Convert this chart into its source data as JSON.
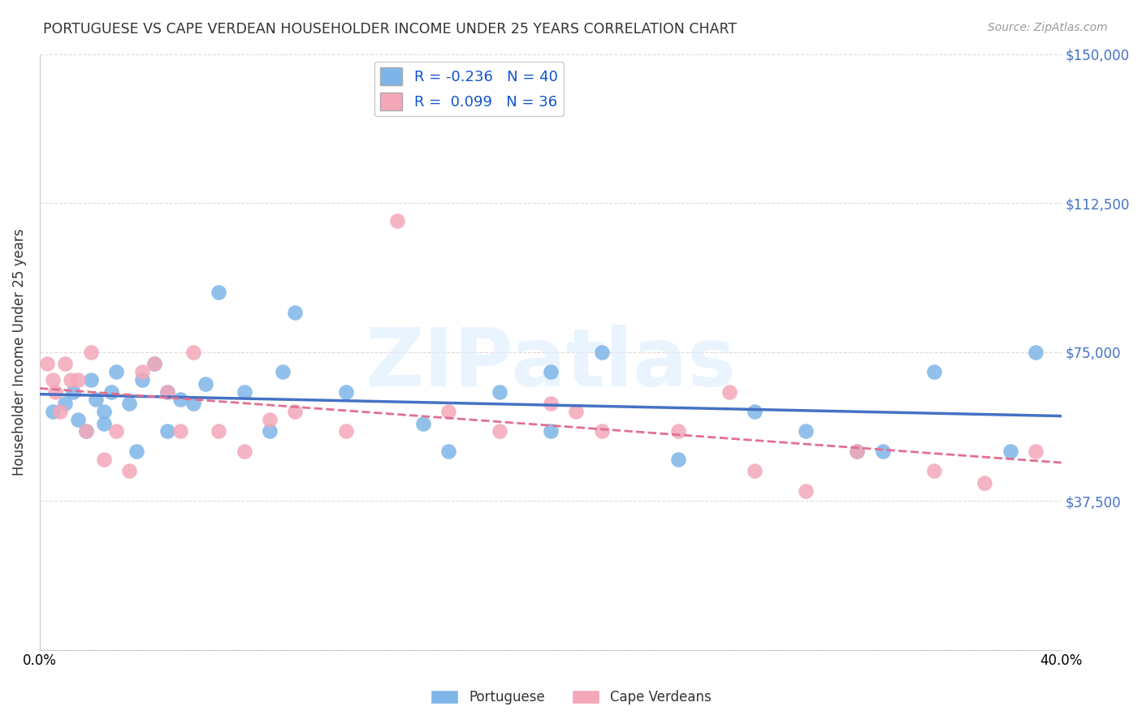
{
  "title": "PORTUGUESE VS CAPE VERDEAN HOUSEHOLDER INCOME UNDER 25 YEARS CORRELATION CHART",
  "source": "Source: ZipAtlas.com",
  "ylabel": "Householder Income Under 25 years",
  "xlim": [
    0,
    0.4
  ],
  "ylim": [
    0,
    150000
  ],
  "yticks": [
    0,
    37500,
    75000,
    112500,
    150000
  ],
  "ytick_labels": [
    "",
    "$37,500",
    "$75,000",
    "$112,500",
    "$150,000"
  ],
  "xticks": [
    0.0,
    0.05,
    0.1,
    0.15,
    0.2,
    0.25,
    0.3,
    0.35,
    0.4
  ],
  "portuguese_R": -0.236,
  "portuguese_N": 40,
  "capeverdean_R": 0.099,
  "capeverdean_N": 36,
  "portuguese_color": "#7EB5E8",
  "capeverdean_color": "#F4A7B9",
  "portuguese_line_color": "#4472C4",
  "capeverdean_line_color": "#E07090",
  "background_color": "#FFFFFF",
  "watermark_text": "ZIPatlas",
  "portuguese_x": [
    0.005,
    0.01,
    0.013,
    0.015,
    0.018,
    0.02,
    0.022,
    0.025,
    0.025,
    0.028,
    0.03,
    0.035,
    0.038,
    0.04,
    0.045,
    0.05,
    0.05,
    0.055,
    0.06,
    0.065,
    0.07,
    0.08,
    0.09,
    0.095,
    0.1,
    0.12,
    0.15,
    0.16,
    0.18,
    0.2,
    0.2,
    0.22,
    0.25,
    0.28,
    0.3,
    0.32,
    0.33,
    0.35,
    0.38,
    0.39
  ],
  "portuguese_y": [
    60000,
    62000,
    65000,
    58000,
    55000,
    68000,
    63000,
    60000,
    57000,
    65000,
    70000,
    62000,
    50000,
    68000,
    72000,
    65000,
    55000,
    63000,
    62000,
    67000,
    90000,
    65000,
    55000,
    70000,
    85000,
    65000,
    57000,
    50000,
    65000,
    70000,
    55000,
    75000,
    48000,
    60000,
    55000,
    50000,
    50000,
    70000,
    50000,
    75000
  ],
  "capeverdean_x": [
    0.003,
    0.005,
    0.006,
    0.008,
    0.01,
    0.012,
    0.015,
    0.018,
    0.02,
    0.025,
    0.03,
    0.035,
    0.04,
    0.045,
    0.05,
    0.055,
    0.06,
    0.07,
    0.08,
    0.09,
    0.1,
    0.12,
    0.14,
    0.16,
    0.18,
    0.2,
    0.21,
    0.22,
    0.25,
    0.27,
    0.28,
    0.3,
    0.32,
    0.35,
    0.37,
    0.39
  ],
  "capeverdean_y": [
    72000,
    68000,
    65000,
    60000,
    72000,
    68000,
    68000,
    55000,
    75000,
    48000,
    55000,
    45000,
    70000,
    72000,
    65000,
    55000,
    75000,
    55000,
    50000,
    58000,
    60000,
    55000,
    108000,
    60000,
    55000,
    62000,
    60000,
    55000,
    55000,
    65000,
    45000,
    40000,
    50000,
    45000,
    42000,
    50000
  ]
}
